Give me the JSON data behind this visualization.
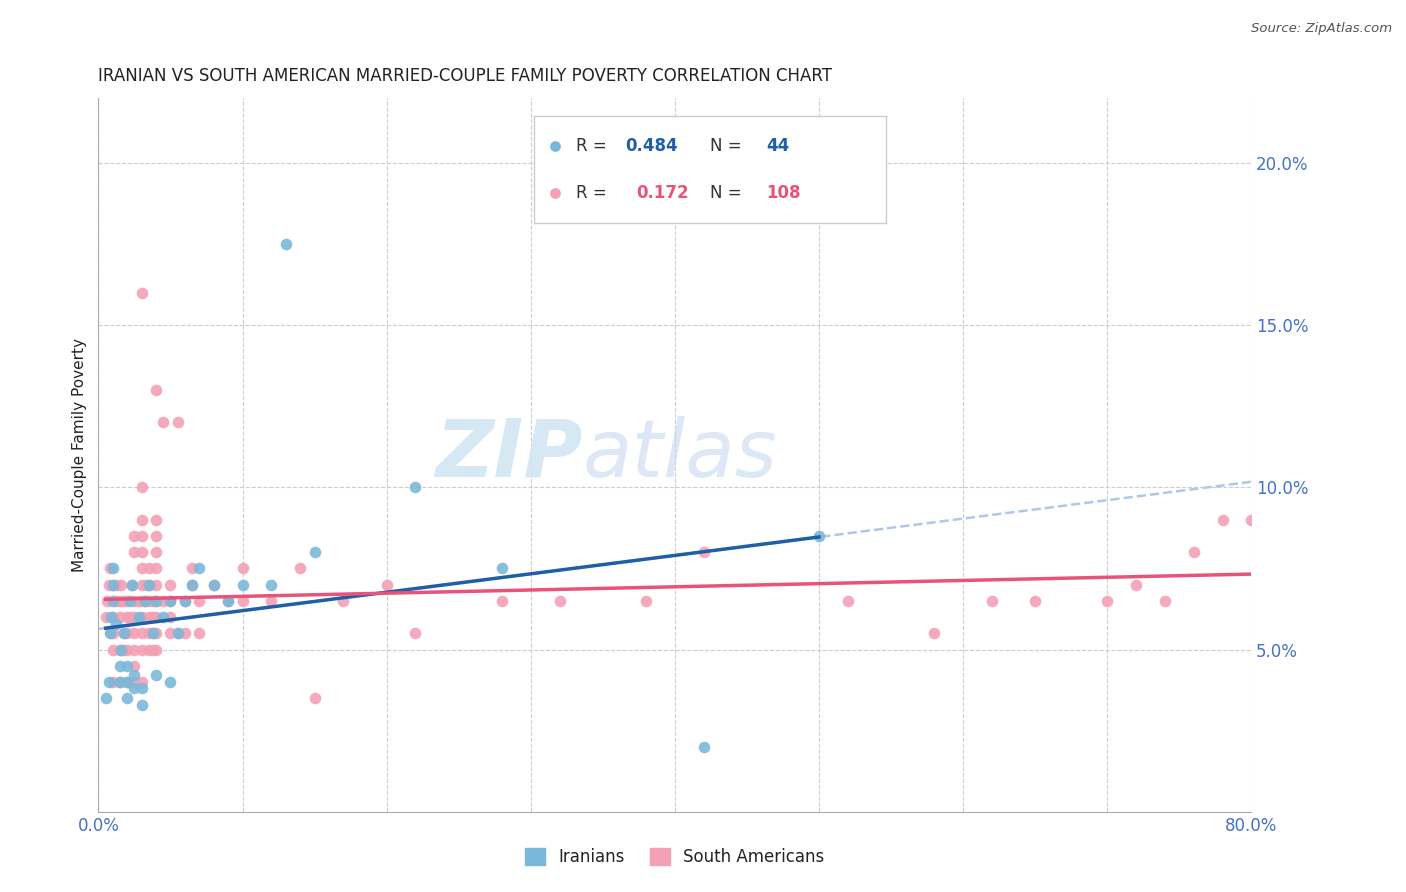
{
  "title": "IRANIAN VS SOUTH AMERICAN MARRIED-COUPLE FAMILY POVERTY CORRELATION CHART",
  "source": "Source: ZipAtlas.com",
  "ylabel": "Married-Couple Family Poverty",
  "xlim": [
    0,
    0.8
  ],
  "ylim": [
    0,
    0.22
  ],
  "xticks": [
    0.0,
    0.1,
    0.2,
    0.3,
    0.4,
    0.5,
    0.6,
    0.7,
    0.8
  ],
  "xticklabels": [
    "0.0%",
    "",
    "",
    "",
    "",
    "",
    "",
    "",
    "80.0%"
  ],
  "yticks": [
    0.0,
    0.05,
    0.1,
    0.15,
    0.2
  ],
  "yticklabels": [
    "",
    "5.0%",
    "10.0%",
    "15.0%",
    "20.0%"
  ],
  "iranian_R": 0.484,
  "iranian_N": 44,
  "southam_R": 0.172,
  "southam_N": 108,
  "iranian_color": "#7ab8d9",
  "southam_color": "#f4a0b5",
  "iranian_trend_color": "#1f5fa6",
  "southam_trend_color": "#e8537a",
  "trend_extend_color": "#b0c8e8",
  "watermark_color": "#d0e4f4",
  "background_color": "#ffffff",
  "grid_color": "#cccccc",
  "title_color": "#222222",
  "axis_label_color": "#4472c4",
  "iranians_x": [
    0.005,
    0.007,
    0.008,
    0.009,
    0.01,
    0.01,
    0.01,
    0.012,
    0.015,
    0.015,
    0.016,
    0.018,
    0.02,
    0.02,
    0.02,
    0.022,
    0.023,
    0.025,
    0.025,
    0.028,
    0.03,
    0.03,
    0.032,
    0.035,
    0.038,
    0.04,
    0.04,
    0.045,
    0.05,
    0.05,
    0.055,
    0.06,
    0.065,
    0.07,
    0.08,
    0.09,
    0.1,
    0.12,
    0.13,
    0.15,
    0.22,
    0.28,
    0.42,
    0.5
  ],
  "iranians_y": [
    0.035,
    0.04,
    0.055,
    0.06,
    0.065,
    0.07,
    0.075,
    0.058,
    0.04,
    0.045,
    0.05,
    0.055,
    0.035,
    0.04,
    0.045,
    0.065,
    0.07,
    0.038,
    0.042,
    0.06,
    0.033,
    0.038,
    0.065,
    0.07,
    0.055,
    0.042,
    0.065,
    0.06,
    0.04,
    0.065,
    0.055,
    0.065,
    0.07,
    0.075,
    0.07,
    0.065,
    0.07,
    0.07,
    0.175,
    0.08,
    0.1,
    0.075,
    0.02,
    0.085
  ],
  "southam_x": [
    0.005,
    0.006,
    0.007,
    0.008,
    0.009,
    0.01,
    0.01,
    0.01,
    0.01,
    0.01,
    0.012,
    0.013,
    0.015,
    0.015,
    0.015,
    0.015,
    0.016,
    0.018,
    0.018,
    0.018,
    0.02,
    0.02,
    0.02,
    0.02,
    0.02,
    0.022,
    0.023,
    0.025,
    0.025,
    0.025,
    0.025,
    0.025,
    0.025,
    0.025,
    0.025,
    0.028,
    0.03,
    0.03,
    0.03,
    0.03,
    0.03,
    0.03,
    0.03,
    0.03,
    0.03,
    0.03,
    0.03,
    0.03,
    0.032,
    0.033,
    0.035,
    0.035,
    0.035,
    0.035,
    0.035,
    0.035,
    0.038,
    0.038,
    0.038,
    0.038,
    0.04,
    0.04,
    0.04,
    0.04,
    0.04,
    0.04,
    0.04,
    0.04,
    0.04,
    0.04,
    0.045,
    0.045,
    0.05,
    0.05,
    0.05,
    0.05,
    0.055,
    0.055,
    0.06,
    0.06,
    0.065,
    0.065,
    0.07,
    0.07,
    0.08,
    0.09,
    0.1,
    0.1,
    0.12,
    0.14,
    0.15,
    0.17,
    0.2,
    0.22,
    0.28,
    0.32,
    0.38,
    0.42,
    0.52,
    0.58,
    0.62,
    0.65,
    0.7,
    0.72,
    0.74,
    0.76,
    0.78,
    0.8
  ],
  "southam_y": [
    0.06,
    0.065,
    0.07,
    0.075,
    0.055,
    0.04,
    0.05,
    0.055,
    0.06,
    0.07,
    0.065,
    0.07,
    0.04,
    0.05,
    0.06,
    0.065,
    0.07,
    0.05,
    0.055,
    0.065,
    0.04,
    0.05,
    0.055,
    0.06,
    0.065,
    0.06,
    0.07,
    0.04,
    0.045,
    0.05,
    0.055,
    0.06,
    0.065,
    0.08,
    0.085,
    0.065,
    0.04,
    0.05,
    0.055,
    0.06,
    0.065,
    0.07,
    0.075,
    0.08,
    0.085,
    0.09,
    0.1,
    0.16,
    0.065,
    0.07,
    0.05,
    0.055,
    0.06,
    0.065,
    0.07,
    0.075,
    0.05,
    0.055,
    0.06,
    0.065,
    0.05,
    0.055,
    0.06,
    0.065,
    0.07,
    0.075,
    0.08,
    0.085,
    0.09,
    0.13,
    0.065,
    0.12,
    0.055,
    0.06,
    0.065,
    0.07,
    0.055,
    0.12,
    0.055,
    0.065,
    0.07,
    0.075,
    0.055,
    0.065,
    0.07,
    0.065,
    0.065,
    0.075,
    0.065,
    0.075,
    0.035,
    0.065,
    0.07,
    0.055,
    0.065,
    0.065,
    0.065,
    0.08,
    0.065,
    0.055,
    0.065,
    0.065,
    0.065,
    0.07,
    0.065,
    0.08,
    0.09,
    0.09
  ]
}
